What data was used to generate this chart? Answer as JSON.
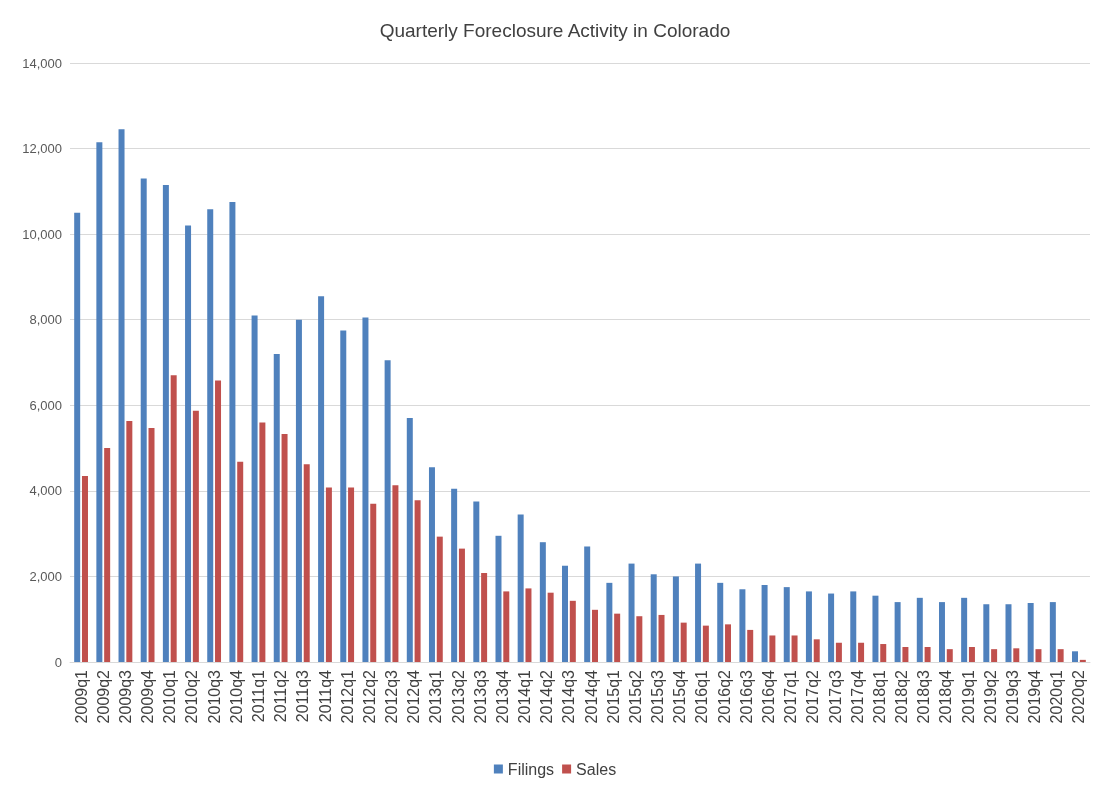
{
  "chart_data": {
    "type": "bar",
    "title": "Quarterly Foreclosure Activity in Colorado",
    "categories": [
      "2009q1",
      "2009q2",
      "2009q3",
      "2009q4",
      "2010q1",
      "2010q2",
      "2010q3",
      "2010q4",
      "2011q1",
      "2011q2",
      "2011q3",
      "2011q4",
      "2012q1",
      "2012q2",
      "2012q3",
      "2012q4",
      "2013q1",
      "2013q2",
      "2013q3",
      "2013q4",
      "2014q1",
      "2014q2",
      "2014q3",
      "2014q4",
      "2015q1",
      "2015q2",
      "2015q3",
      "2015q4",
      "2016q1",
      "2016q2",
      "2016q3",
      "2016q4",
      "2017q1",
      "2017q2",
      "2017q3",
      "2017q4",
      "2018q1",
      "2018q2",
      "2018q3",
      "2018q4",
      "2019q1",
      "2019q2",
      "2019q3",
      "2019q4",
      "2020q1",
      "2020q2"
    ],
    "series": [
      {
        "name": "Filings",
        "color": "#4f81bd",
        "values": [
          10500,
          12150,
          12450,
          11300,
          11150,
          10200,
          10580,
          10750,
          8100,
          7200,
          8000,
          8550,
          7750,
          8050,
          7050,
          5700,
          4550,
          4050,
          3750,
          2950,
          3450,
          2800,
          2250,
          2700,
          1850,
          2300,
          2050,
          2000,
          2300,
          1850,
          1700,
          1800,
          1750,
          1650,
          1600,
          1650,
          1550,
          1400,
          1500,
          1400,
          1500,
          1350,
          1350,
          1380,
          1400,
          250
        ]
      },
      {
        "name": "Sales",
        "color": "#c0504d",
        "values": [
          4350,
          5000,
          5630,
          5470,
          6700,
          5870,
          6580,
          4680,
          5600,
          5330,
          4620,
          4080,
          4080,
          3700,
          4130,
          3780,
          2930,
          2650,
          2080,
          1650,
          1720,
          1620,
          1430,
          1220,
          1130,
          1070,
          1100,
          920,
          850,
          880,
          750,
          620,
          620,
          530,
          450,
          450,
          420,
          350,
          350,
          300,
          350,
          300,
          320,
          300,
          300,
          50
        ]
      }
    ],
    "ylim": [
      0,
      14000
    ],
    "yticks": [
      0,
      {
        "value": 2000,
        "label": "2,000"
      },
      {
        "value": 4000,
        "label": "4,000"
      },
      {
        "value": 6000,
        "label": "6,000"
      },
      {
        "value": 8000,
        "label": "8,000"
      },
      {
        "value": 10000,
        "label": "10,000"
      },
      {
        "value": 12000,
        "label": "12,000"
      },
      {
        "value": 14000,
        "label": "14,000"
      }
    ],
    "grid": "y",
    "legend": "bottom"
  }
}
